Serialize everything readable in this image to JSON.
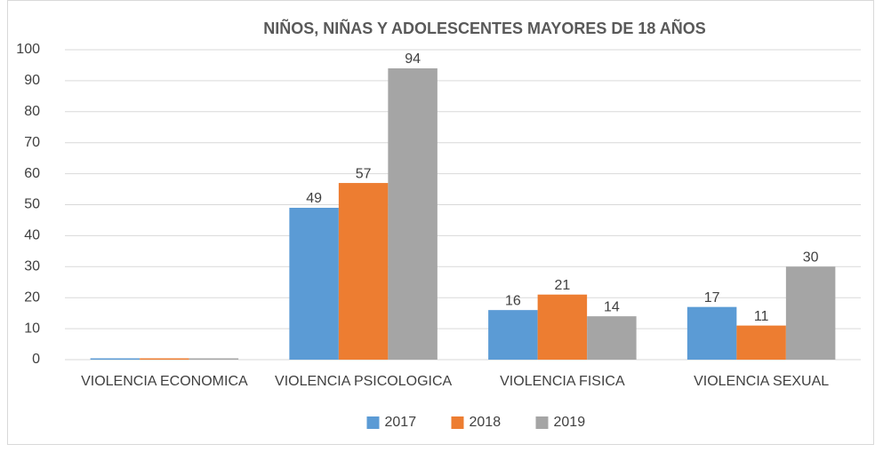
{
  "chart_data": {
    "type": "bar",
    "title": "NIÑOS, NIÑAS Y ADOLESCENTES MAYORES DE 18 AÑOS",
    "categories": [
      "VIOLENCIA ECONOMICA",
      "VIOLENCIA PSICOLOGICA",
      "VIOLENCIA FISICA",
      "VIOLENCIA SEXUAL"
    ],
    "series": [
      {
        "name": "2017",
        "color": "#5b9bd5",
        "values": [
          0,
          49,
          16,
          17
        ]
      },
      {
        "name": "2018",
        "color": "#ed7d31",
        "values": [
          0,
          57,
          21,
          11
        ]
      },
      {
        "name": "2019",
        "color": "#a5a5a5",
        "values": [
          0,
          94,
          14,
          30
        ]
      }
    ],
    "ylim": [
      0,
      100
    ],
    "yticks": [
      0,
      10,
      20,
      30,
      40,
      50,
      60,
      70,
      80,
      90,
      100
    ],
    "grid": true,
    "legend": "bottom"
  }
}
